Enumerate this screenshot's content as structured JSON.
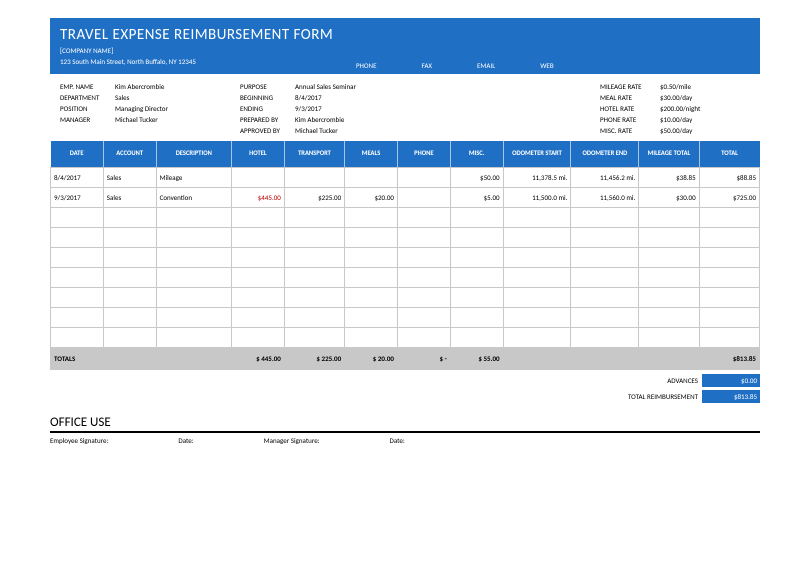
{
  "header": {
    "title": "TRAVEL EXPENSE REIMBURSEMENT FORM",
    "company": "[COMPANY NAME]",
    "address": "123 South Main Street, North Buffalo, NY 12345",
    "contacts": [
      "PHONE",
      "FAX",
      "EMAIL",
      "WEB"
    ]
  },
  "info": {
    "left": [
      {
        "label": "EMP. NAME",
        "value": "Kim Abercrombie"
      },
      {
        "label": "DEPARTMENT",
        "value": "Sales"
      },
      {
        "label": "POSITION",
        "value": "Managing Director"
      },
      {
        "label": "MANAGER",
        "value": "Michael Tucker"
      }
    ],
    "mid": [
      {
        "label": "PURPOSE",
        "value": "Annual Sales Seminar"
      },
      {
        "label": "BEGINNING",
        "value": "8/4/2017"
      },
      {
        "label": "ENDING",
        "value": "9/3/2017"
      },
      {
        "label": "PREPARED BY",
        "value": "Kim Abercrombie"
      },
      {
        "label": "APPROVED BY",
        "value": "Michael Tucker"
      }
    ],
    "right": [
      {
        "label": "MILEAGE RATE",
        "value": "$0.50/mile"
      },
      {
        "label": "MEAL RATE",
        "value": "$30.00/day"
      },
      {
        "label": "HOTEL RATE",
        "value": "$200.00/night"
      },
      {
        "label": "PHONE RATE",
        "value": "$10.00/day"
      },
      {
        "label": "MISC. RATE",
        "value": "$50.00/day"
      }
    ]
  },
  "table": {
    "columns": [
      "DATE",
      "ACCOUNT",
      "DESCRIPTION",
      "HOTEL",
      "TRANSPORT",
      "MEALS",
      "PHONE",
      "MISC.",
      "ODOMETER START",
      "ODOMETER END",
      "MILEAGE TOTAL",
      "TOTAL"
    ],
    "rows": [
      {
        "date": "8/4/2017",
        "account": "Sales",
        "desc": "Mileage",
        "hotel": "",
        "transport": "",
        "meals": "",
        "phone": "",
        "misc": "$50.00",
        "odo_start": "11,378.5 mi.",
        "odo_end": "11,456.2 mi.",
        "mileage": "$38.85",
        "total": "$88.85"
      },
      {
        "date": "9/3/2017",
        "account": "Sales",
        "desc": "Convention",
        "hotel": "$445.00",
        "transport": "$225.00",
        "meals": "$20.00",
        "phone": "",
        "misc": "$5.00",
        "odo_start": "11,500.0 mi.",
        "odo_end": "11,560.0 mi.",
        "mileage": "$30.00",
        "total": "$725.00"
      }
    ],
    "empty_rows": 7,
    "totals": {
      "label": "TOTALS",
      "hotel": "$    445.00",
      "transport": "$    225.00",
      "meals": "$    20.00",
      "phone": "$    -",
      "misc": "$    55.00",
      "total": "$813.85"
    }
  },
  "summary": {
    "advances": {
      "label": "ADVANCES",
      "value": "$0.00"
    },
    "total_reimb": {
      "label": "TOTAL REIMBURSEMENT",
      "value": "$813.85"
    }
  },
  "office": {
    "title": "OFFICE USE",
    "sig": [
      "Employee Signature:",
      "Date:",
      "Manager Signature:",
      "Date:"
    ]
  },
  "colors": {
    "brand": "#1f6fc4",
    "totals_bg": "#c8c8c8",
    "red": "#c00000"
  }
}
